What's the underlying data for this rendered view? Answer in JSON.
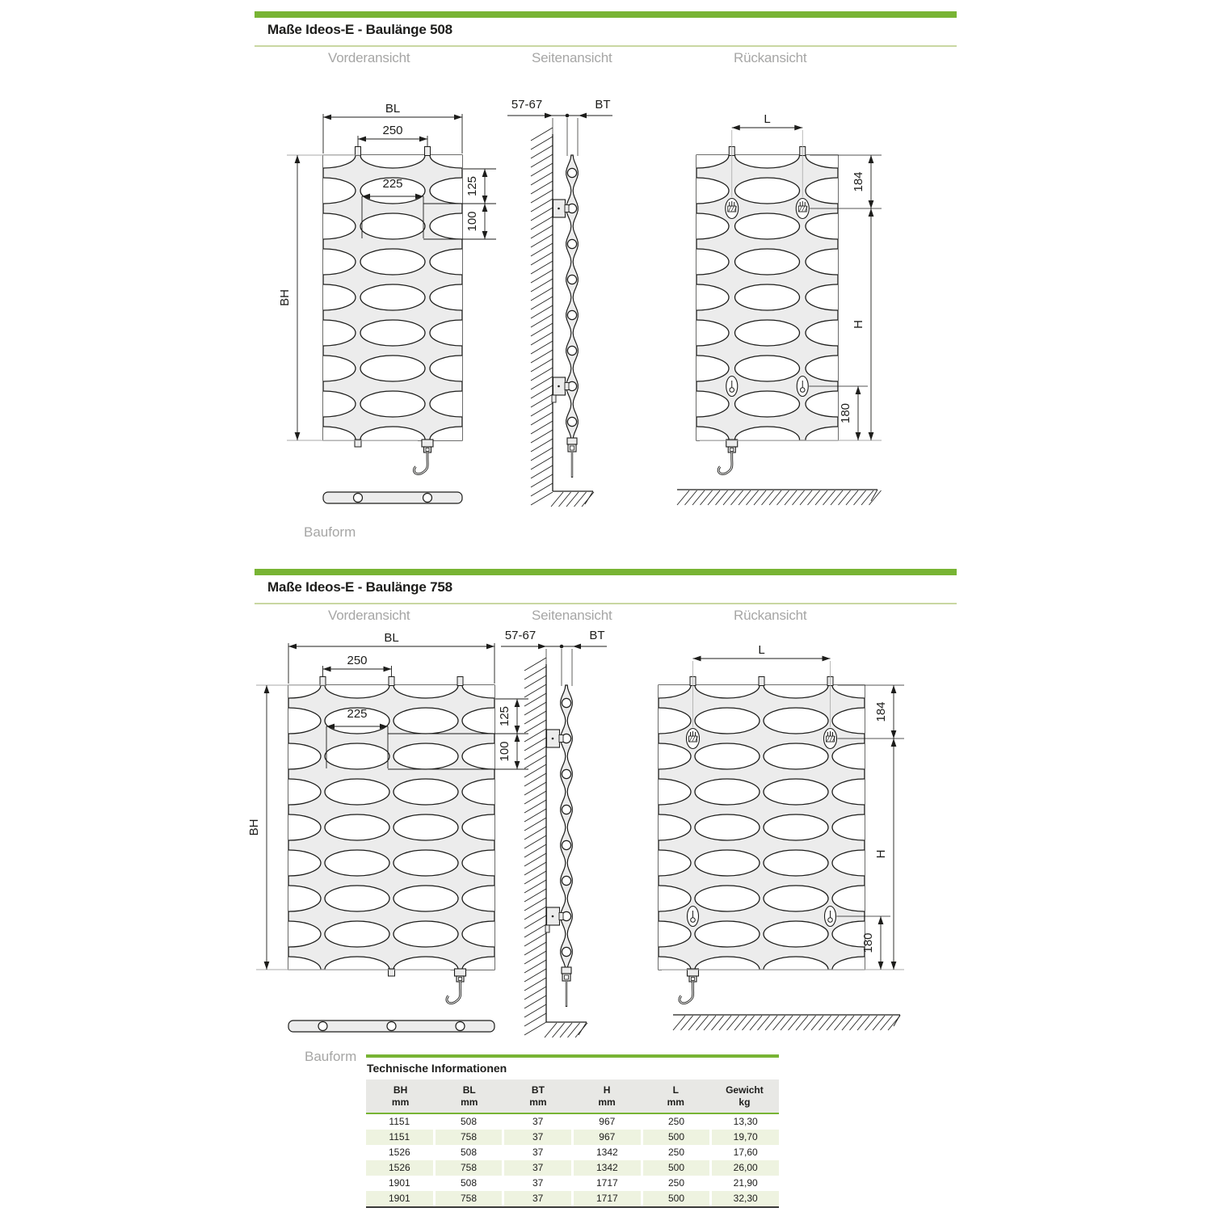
{
  "sections": [
    {
      "title": "Maße Ideos-E - Baulänge 508",
      "views": [
        "Vorderansicht",
        "Seitenansicht",
        "Rückansicht"
      ],
      "bauform_label": "Bauform"
    },
    {
      "title": "Maße Ideos-E - Baulänge 758",
      "views": [
        "Vorderansicht",
        "Seitenansicht",
        "Rückansicht"
      ],
      "bauform_label": "Bauform"
    }
  ],
  "diagram_labels": {
    "bl": "BL",
    "pitch250": "250",
    "oval225": "225",
    "d125": "125",
    "d100": "100",
    "bh": "BH",
    "wallDist": "57-67",
    "bt": "BT",
    "l": "L",
    "d184": "184",
    "h": "H",
    "d180": "180"
  },
  "table": {
    "title": "Technische Informationen",
    "columns": [
      {
        "label": "BH",
        "unit": "mm"
      },
      {
        "label": "BL",
        "unit": "mm"
      },
      {
        "label": "BT",
        "unit": "mm"
      },
      {
        "label": "H",
        "unit": "mm"
      },
      {
        "label": "L",
        "unit": "mm"
      },
      {
        "label": "Gewicht",
        "unit": "kg"
      }
    ],
    "rows": [
      [
        "1151",
        "508",
        "37",
        "967",
        "250",
        "13,30"
      ],
      [
        "1151",
        "758",
        "37",
        "967",
        "500",
        "19,70"
      ],
      [
        "1526",
        "508",
        "37",
        "1342",
        "250",
        "17,60"
      ],
      [
        "1526",
        "758",
        "37",
        "1342",
        "500",
        "26,00"
      ],
      [
        "1901",
        "508",
        "37",
        "1717",
        "250",
        "21,90"
      ],
      [
        "1901",
        "758",
        "37",
        "1717",
        "500",
        "32,30"
      ]
    ]
  },
  "colors": {
    "accent_green": "#78b434",
    "pale_green_rule": "#c9d7a2",
    "row_green": "#eef3e0",
    "header_gray": "#e8e8e5",
    "ink": "#1d1d1b",
    "body_fill": "#ececec",
    "muted_text": "#a6a6a5"
  }
}
